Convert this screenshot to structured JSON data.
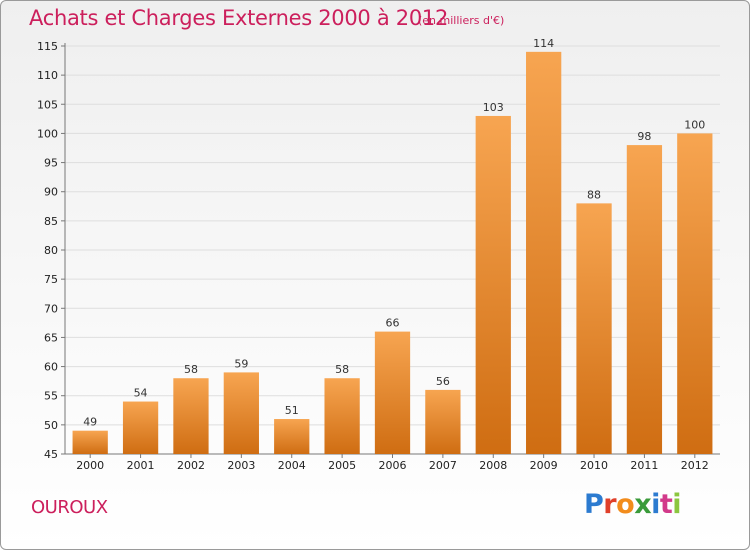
{
  "header": {
    "title": "Achats et Charges Externes 2000 à 2012",
    "subtitle": "(en milliers d'€)"
  },
  "footer": {
    "place": "OUROUX",
    "logo_text": "Proxiti",
    "logo_colors": [
      "#2c7bd0",
      "#e0402a",
      "#f28c1c",
      "#3a9b3a",
      "#2c7bd0",
      "#d23a8a",
      "#8cc63f"
    ]
  },
  "chart_data": {
    "type": "bar",
    "categories": [
      "2000",
      "2001",
      "2002",
      "2003",
      "2004",
      "2005",
      "2006",
      "2007",
      "2008",
      "2009",
      "2010",
      "2011",
      "2012"
    ],
    "values": [
      49,
      54,
      58,
      59,
      51,
      58,
      66,
      56,
      103,
      114,
      88,
      98,
      100
    ],
    "title": "Achats et Charges Externes 2000 à 2012",
    "ylim": [
      45,
      115
    ],
    "yticks": [
      45,
      50,
      55,
      60,
      65,
      70,
      75,
      80,
      85,
      90,
      95,
      100,
      105,
      110,
      115
    ],
    "grid": true,
    "bar_color_top": "#f7a551",
    "bar_color_bottom": "#cf6d12"
  }
}
